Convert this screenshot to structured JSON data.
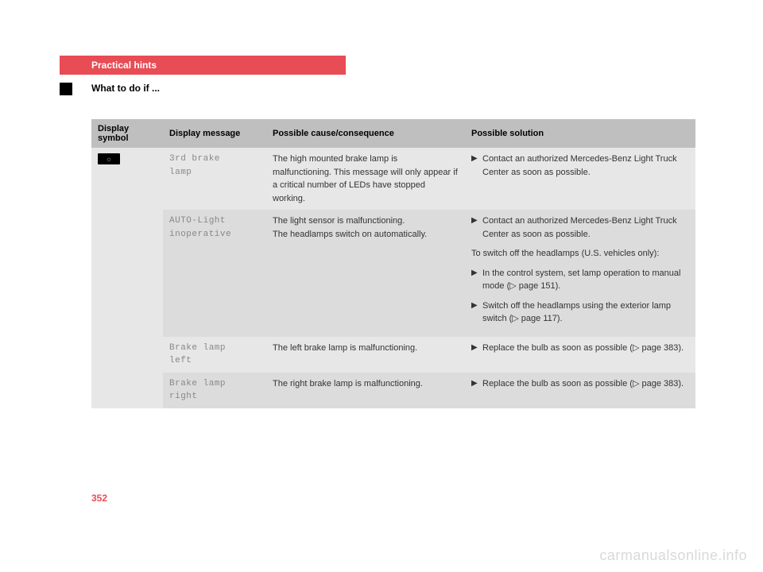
{
  "header": {
    "title": "Practical hints",
    "subtitle": "What to do if ..."
  },
  "table": {
    "headers": {
      "c1": "Display symbol",
      "c2": "Display message",
      "c3": "Possible cause/consequence",
      "c4": "Possible solution"
    },
    "symbol_glyph": "☼",
    "rows": [
      {
        "msg1": "3rd brake",
        "msg2": "lamp",
        "cause": "The high mounted brake lamp is malfunctioning. This message will only appear if a critical number of LEDs have stopped working.",
        "sol": [
          {
            "type": "bullet",
            "text": "Contact an authorized Mercedes-Benz Light Truck Center as soon as possible."
          }
        ]
      },
      {
        "msg1": "AUTO-Light",
        "msg2": "inoperative",
        "cause": "The light sensor is malfunctioning.\nThe headlamps switch on automatically.",
        "sol": [
          {
            "type": "bullet",
            "text": "Contact an authorized Mercedes-Benz Light Truck Center as soon as possible."
          },
          {
            "type": "plain",
            "text": "To switch off the headlamps (U.S. vehicles only):"
          },
          {
            "type": "bullet",
            "text": "In the control system, set lamp operation to manual mode (▷ page 151)."
          },
          {
            "type": "bullet",
            "text": "Switch off the headlamps using the exterior lamp switch (▷ page 117)."
          }
        ]
      },
      {
        "msg1": "Brake lamp",
        "msg2": "left",
        "cause": "The left brake lamp is malfunctioning.",
        "sol": [
          {
            "type": "bullet",
            "text": "Replace the bulb as soon as possible (▷ page 383)."
          }
        ]
      },
      {
        "msg1": "Brake lamp",
        "msg2": "right",
        "cause": "The right brake lamp is malfunctioning.",
        "sol": [
          {
            "type": "bullet",
            "text": "Replace the bulb as soon as possible (▷ page 383)."
          }
        ]
      }
    ]
  },
  "page_number": "352",
  "watermark": "carmanualsonline.info"
}
